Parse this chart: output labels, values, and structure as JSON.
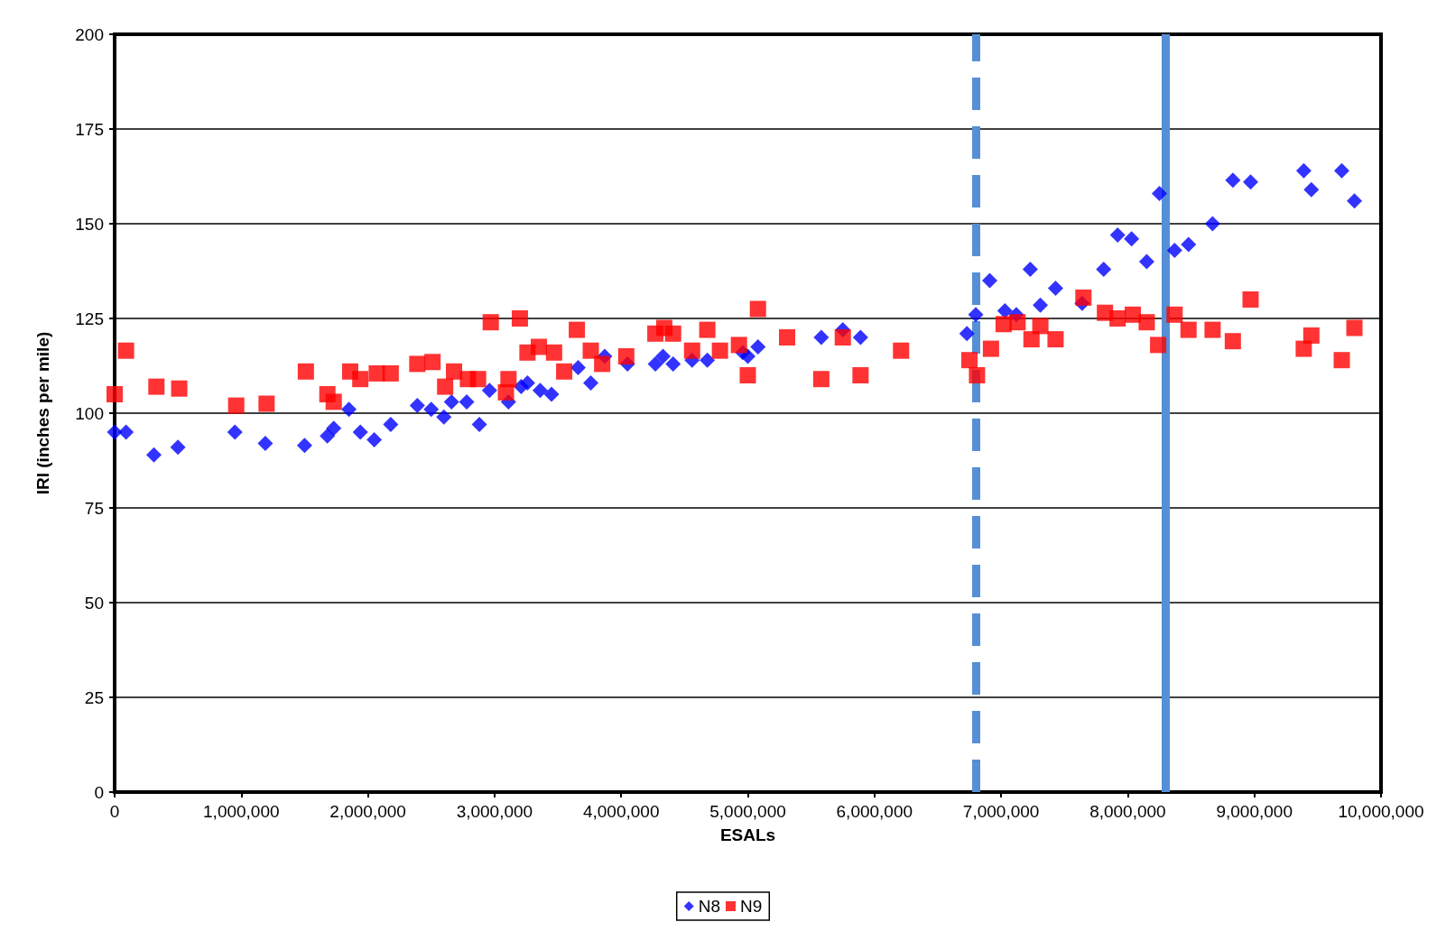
{
  "chart_data": {
    "type": "scatter",
    "xlabel": "ESALs",
    "ylabel": "IRI (inches per mile)",
    "xlim": [
      0,
      10000000
    ],
    "xticks": [
      {
        "value": 0,
        "label": "0"
      },
      {
        "value": 1000000,
        "label": "1,000,000"
      },
      {
        "value": 2000000,
        "label": "2,000,000"
      },
      {
        "value": 3000000,
        "label": "3,000,000"
      },
      {
        "value": 4000000,
        "label": "4,000,000"
      },
      {
        "value": 5000000,
        "label": "5,000,000"
      },
      {
        "value": 6000000,
        "label": "6,000,000"
      },
      {
        "value": 7000000,
        "label": "7,000,000"
      },
      {
        "value": 8000000,
        "label": "8,000,000"
      },
      {
        "value": 9000000,
        "label": "9,000,000"
      },
      {
        "value": 10000000,
        "label": "10,000,000"
      }
    ],
    "ylim": [
      0,
      200
    ],
    "yticks": [
      0,
      25,
      50,
      75,
      100,
      125,
      150,
      175,
      200
    ],
    "grid": "y",
    "legend": "bottom",
    "series": [
      {
        "name": "N8",
        "color": "#0000ff",
        "marker": "diamond",
        "x": [
          0,
          90000,
          310000,
          500000,
          950000,
          1190000,
          1500000,
          1680000,
          1730000,
          1850000,
          1940000,
          2050000,
          2180000,
          2390000,
          2500000,
          2600000,
          2660000,
          2780000,
          2880000,
          2960000,
          3110000,
          3210000,
          3260000,
          3360000,
          3450000,
          3660000,
          3760000,
          3870000,
          4050000,
          4270000,
          4330000,
          4410000,
          4560000,
          4680000,
          4960000,
          5000000,
          5080000,
          5310000,
          5580000,
          5750000,
          5890000,
          6210000,
          6730000,
          6800000,
          6910000,
          7030000,
          7120000,
          7230000,
          7310000,
          7430000,
          7640000,
          7810000,
          7920000,
          8030000,
          8150000,
          8250000,
          8370000,
          8480000,
          8670000,
          8830000,
          8970000,
          9390000,
          9450000,
          9690000,
          9790000
        ],
        "values": [
          95,
          95,
          89,
          91,
          95,
          92,
          91.5,
          94,
          96,
          101,
          95,
          93,
          97,
          102,
          101,
          99,
          103,
          103,
          97,
          106,
          103,
          107,
          108,
          106,
          105,
          112,
          108,
          115,
          113,
          113,
          115,
          113,
          114,
          114,
          116,
          115,
          117.5,
          null,
          120,
          122,
          120,
          null,
          121,
          126,
          135,
          127,
          126,
          138,
          128.5,
          133,
          129,
          138,
          147,
          146,
          140,
          158,
          143,
          144.5,
          150,
          161.5,
          161,
          164,
          159,
          164,
          156
        ]
      },
      {
        "name": "N9",
        "color": "#ff0000",
        "marker": "square",
        "x": [
          0,
          90000,
          330000,
          510000,
          960000,
          1200000,
          1510000,
          1680000,
          1730000,
          1860000,
          1940000,
          2070000,
          2180000,
          2390000,
          2510000,
          2610000,
          2680000,
          2790000,
          2870000,
          2970000,
          3090000,
          3110000,
          3200000,
          3260000,
          3350000,
          3470000,
          3550000,
          3650000,
          3760000,
          3850000,
          4040000,
          4270000,
          4340000,
          4410000,
          4560000,
          4680000,
          4780000,
          4930000,
          5000000,
          5080000,
          5310000,
          5580000,
          5750000,
          5890000,
          6210000,
          6750000,
          6810000,
          6920000,
          7020000,
          7130000,
          7240000,
          7310000,
          7430000,
          7650000,
          7820000,
          7920000,
          8040000,
          8150000,
          8240000,
          8370000,
          8480000,
          8670000,
          8830000,
          8970000,
          9390000,
          9450000,
          9690000,
          9790000
        ],
        "values": [
          105,
          116.5,
          107,
          106.5,
          102,
          102.5,
          111,
          105,
          103,
          111,
          109,
          110.5,
          110.5,
          113,
          113.5,
          107,
          111,
          109,
          109,
          124,
          105.5,
          109,
          125,
          116,
          117.5,
          116,
          111,
          122,
          116.5,
          113,
          115,
          121,
          122.5,
          121,
          116.5,
          122,
          116.5,
          118,
          110,
          127.5,
          120,
          109,
          120,
          110,
          116.5,
          114,
          110,
          117,
          123.5,
          124,
          119.5,
          123,
          119.5,
          130.5,
          126.5,
          125,
          126,
          124,
          118,
          126,
          122,
          122,
          119,
          130,
          117,
          120.5,
          114,
          122.5
        ]
      }
    ],
    "ref_lines": [
      {
        "axis": "x",
        "value": 6800000,
        "color": "#568fd6",
        "line_style": "dashed"
      },
      {
        "axis": "x",
        "value": 8300000,
        "color": "#568fd6",
        "line_style": "solid"
      }
    ]
  }
}
